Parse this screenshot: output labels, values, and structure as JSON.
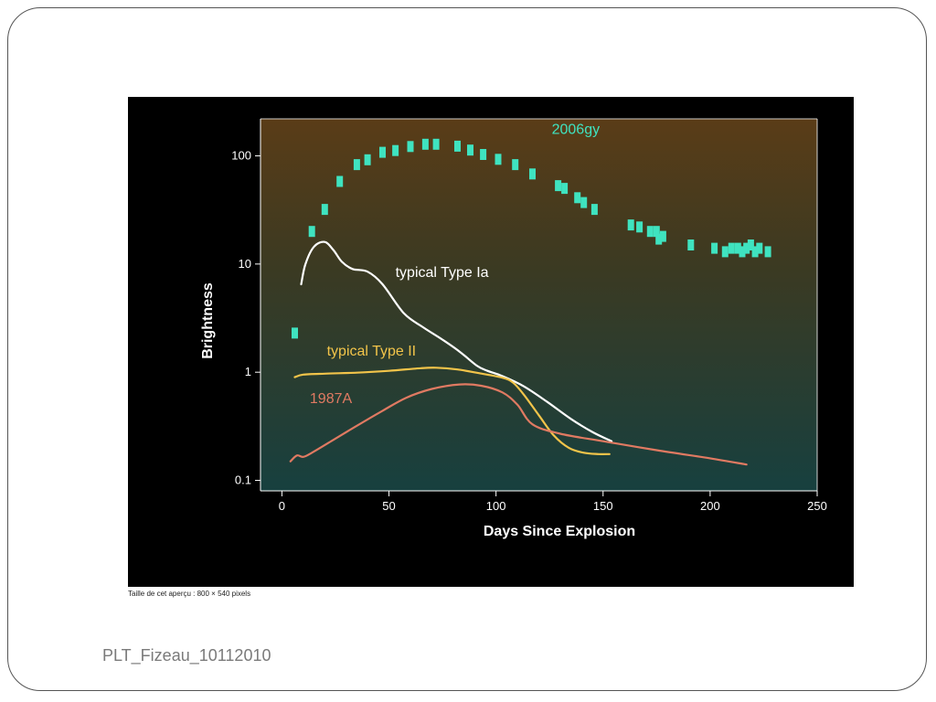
{
  "slide": {
    "caption": "Taille de cet aperçu : 800 × 540 pixels",
    "footer": "PLT_Fizeau_10112010"
  },
  "colors": {
    "sn2006gy": "#3fe3c0",
    "typeIa": "#ffffff",
    "typeII": "#f2c44a",
    "sn1987A": "#e07a62",
    "axis": "#ffffff"
  },
  "chart_data": {
    "type": "line",
    "title": "",
    "xlabel": "Days Since Explosion",
    "ylabel": "Brightness",
    "xlim": [
      -10,
      250
    ],
    "ylim": [
      0.08,
      220
    ],
    "yscale": "log",
    "xticks": [
      0,
      50,
      100,
      150,
      200,
      250
    ],
    "yticks": [
      0.1,
      1,
      10,
      100
    ],
    "ytick_labels": [
      "0.1",
      "1",
      "10",
      "100"
    ],
    "grid": false,
    "series": [
      {
        "name": "2006gy",
        "kind": "scatter",
        "color": "#3fe3c0",
        "x": [
          6,
          14,
          20,
          27,
          35,
          40,
          47,
          53,
          60,
          67,
          72,
          82,
          88,
          94,
          101,
          109,
          117,
          129,
          132,
          138,
          141,
          146,
          163,
          167,
          172,
          175,
          176,
          178,
          191,
          202,
          207,
          210,
          213,
          215,
          217,
          219,
          221,
          223,
          227
        ],
        "y": [
          2.3,
          20,
          32,
          58,
          83,
          92,
          108,
          112,
          122,
          128,
          128,
          123,
          113,
          103,
          93,
          83,
          68,
          53,
          50,
          41,
          37,
          32,
          23,
          22,
          20,
          20,
          17,
          18,
          15,
          14,
          13,
          14,
          14,
          13,
          14,
          15,
          13,
          14,
          13
        ]
      },
      {
        "name": "typical Type Ia",
        "kind": "line",
        "color": "#ffffff",
        "x": [
          9,
          11,
          15,
          20,
          24,
          28,
          33,
          40,
          47,
          57,
          66,
          75,
          83,
          91,
          96,
          103,
          113,
          124,
          135,
          145,
          154
        ],
        "y": [
          6.5,
          10,
          14.5,
          16,
          13.5,
          10.5,
          9,
          8.5,
          6.5,
          3.5,
          2.6,
          2,
          1.55,
          1.15,
          1.03,
          0.92,
          0.74,
          0.53,
          0.37,
          0.28,
          0.23
        ]
      },
      {
        "name": "typical Type II",
        "kind": "line",
        "color": "#f2c44a",
        "x": [
          6,
          10,
          20,
          35,
          50,
          65,
          72,
          82,
          92,
          103,
          108,
          113,
          120,
          127,
          134,
          141,
          148,
          153
        ],
        "y": [
          0.9,
          0.95,
          0.97,
          0.99,
          1.03,
          1.09,
          1.1,
          1.06,
          0.98,
          0.89,
          0.8,
          0.62,
          0.4,
          0.26,
          0.2,
          0.18,
          0.175,
          0.175
        ]
      },
      {
        "name": "1987A",
        "kind": "line",
        "color": "#e07a62",
        "x": [
          4,
          7,
          10,
          14,
          23,
          35,
          47,
          58,
          70,
          83,
          93,
          103,
          110,
          117,
          130,
          150,
          175,
          200,
          217
        ],
        "y": [
          0.15,
          0.17,
          0.165,
          0.18,
          0.23,
          0.32,
          0.44,
          0.58,
          0.7,
          0.77,
          0.75,
          0.65,
          0.5,
          0.33,
          0.27,
          0.23,
          0.19,
          0.16,
          0.14
        ]
      }
    ],
    "annotations": [
      {
        "text": "2006gy",
        "x": 126,
        "y": 160,
        "color": "#3fe3c0"
      },
      {
        "text": "typical Type Ia",
        "x": 53,
        "y": 7.6,
        "color": "#ffffff"
      },
      {
        "text": "typical Type II",
        "x": 21,
        "y": 1.42,
        "color": "#f2c44a"
      },
      {
        "text": "1987A",
        "x": 13,
        "y": 0.52,
        "color": "#e07a62"
      }
    ]
  }
}
